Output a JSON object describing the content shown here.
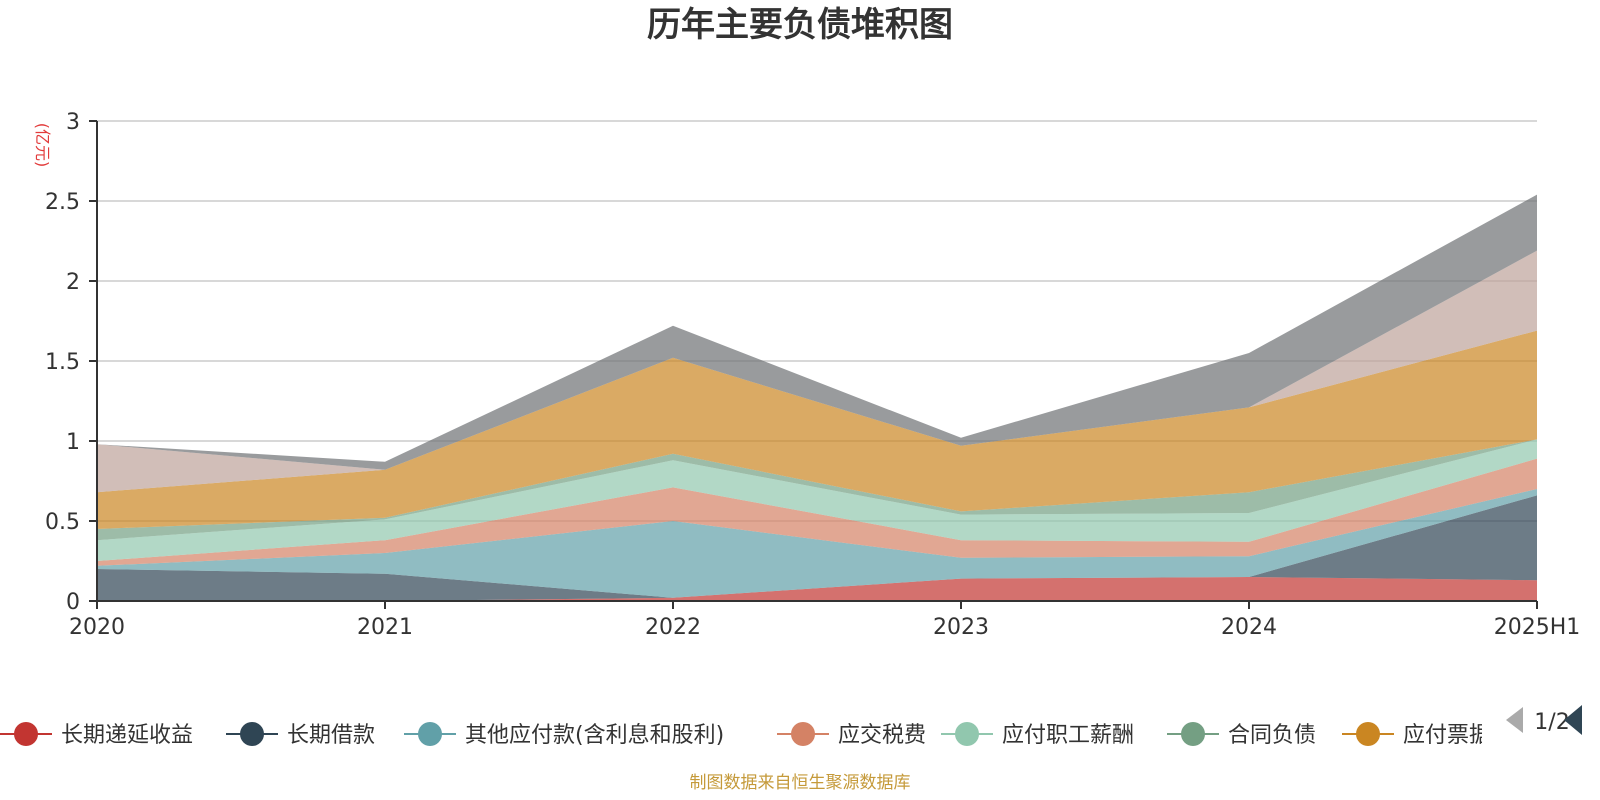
{
  "chart_data": {
    "type": "area",
    "title": "历年主要负债堆积图",
    "ylabel": "(亿元)",
    "categories": [
      "2020",
      "2021",
      "2022",
      "2023",
      "2024",
      "2025H1"
    ],
    "ylim": [
      0,
      3
    ],
    "yticks": [
      "0",
      "0.5",
      "1",
      "1.5",
      "2",
      "2.5",
      "3"
    ],
    "grid": true,
    "stacked": true,
    "series": [
      {
        "name": "长期递延收益",
        "color": "#c23531",
        "values": [
          0.0,
          0.0,
          0.02,
          0.14,
          0.15,
          0.13
        ]
      },
      {
        "name": "长期借款",
        "color": "#2f4554",
        "values": [
          0.2,
          0.17,
          0.0,
          0.0,
          0.0,
          0.53
        ]
      },
      {
        "name": "其他应付款(含利息和股利)",
        "color": "#61a0a8",
        "values": [
          0.02,
          0.13,
          0.48,
          0.13,
          0.13,
          0.04
        ]
      },
      {
        "name": "应交税费",
        "color": "#d48265",
        "values": [
          0.03,
          0.08,
          0.21,
          0.11,
          0.09,
          0.19
        ]
      },
      {
        "name": "应付职工薪酬",
        "color": "#91c7ae",
        "values": [
          0.13,
          0.13,
          0.17,
          0.16,
          0.18,
          0.12
        ]
      },
      {
        "name": "合同负债",
        "color": "#749f83",
        "values": [
          0.07,
          0.01,
          0.04,
          0.02,
          0.13,
          0.0
        ]
      },
      {
        "name": "应付票据",
        "color": "#ca8622",
        "values": [
          0.23,
          0.3,
          0.6,
          0.41,
          0.53,
          0.68
        ]
      },
      {
        "name": "",
        "color": "#bda29a",
        "values": [
          0.3,
          0.0,
          0.0,
          0.0,
          0.0,
          0.5
        ]
      },
      {
        "name": "",
        "color": "#6e7074",
        "values": [
          0.0,
          0.05,
          0.2,
          0.05,
          0.34,
          0.35
        ]
      }
    ]
  },
  "legend": {
    "items": [
      {
        "label": "长期递延收益",
        "color": "#c23531"
      },
      {
        "label": "长期借款",
        "color": "#2f4554"
      },
      {
        "label": "其他应付款(含利息和股利)",
        "color": "#61a0a8"
      },
      {
        "label": "应交税费",
        "color": "#d48265"
      },
      {
        "label": "应付职工薪酬",
        "color": "#91c7ae"
      },
      {
        "label": "合同负债",
        "color": "#749f83"
      },
      {
        "label": "应付票据",
        "color": "#ca8622"
      }
    ],
    "page_indicator": "1/2",
    "prev_icon": "triangle-left-icon",
    "next_icon": "triangle-right-icon"
  },
  "footer": {
    "source": "制图数据来自恒生聚源数据库"
  }
}
